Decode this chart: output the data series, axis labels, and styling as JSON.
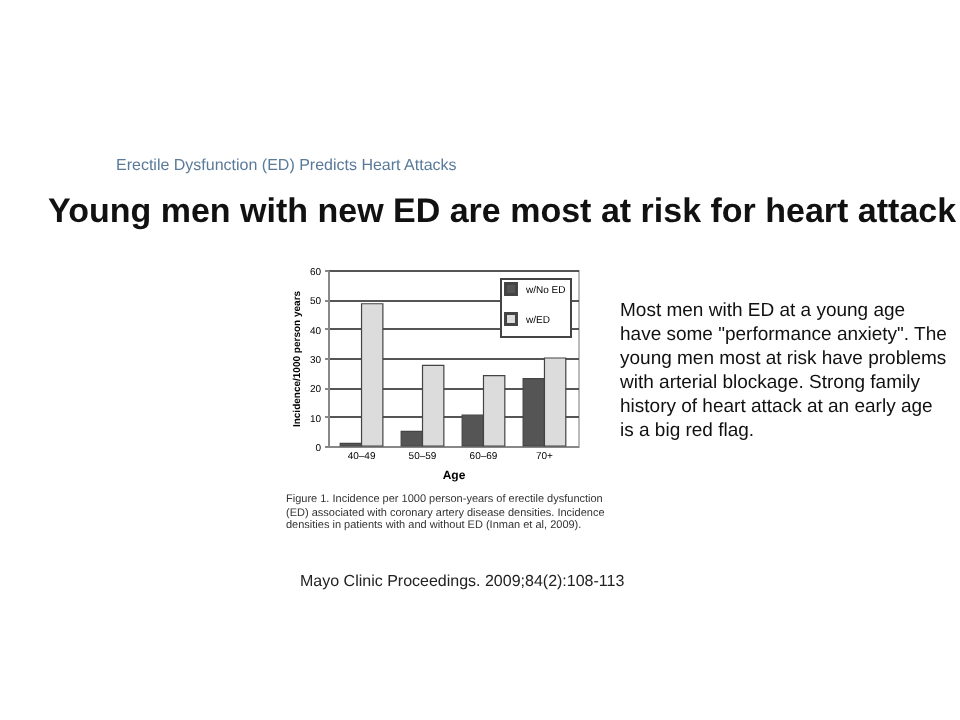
{
  "chart_data": {
    "type": "bar",
    "subtitle": "Erectile Dysfunction (ED) Predicts Heart Attacks",
    "title": "Young men with new ED are most at risk for heart attack",
    "xlabel": "Age",
    "ylabel": "Incidence/1000 person years",
    "categories": [
      "40–49",
      "50–59",
      "60–69",
      "70+"
    ],
    "series": [
      {
        "name": "w/No ED",
        "color": "#555555",
        "values": [
          0.9,
          5,
          10.5,
          23
        ]
      },
      {
        "name": "w/ED",
        "color": "#dcdcdc",
        "values": [
          48.5,
          27.5,
          24,
          30
        ]
      }
    ],
    "ylim": [
      0,
      60
    ],
    "yticks": [
      0,
      10,
      20,
      30,
      40,
      50,
      60
    ],
    "grid": "y",
    "legend": "top right",
    "annotations": [
      "Most men with ED at a young age have some \"performance anxiety\". The young men most at risk have problems with arterial blockage. Strong family history of heart attack at an early age is a big red flag.",
      "Figure 1. Incidence per 1000 person-years of erectile dysfunction (ED) associated with coronary artery disease densities. Incidence densities in patients with and without ED (Inman et al, 2009).",
      "Mayo Clinic Proceedings. 2009;84(2):108-113"
    ]
  }
}
